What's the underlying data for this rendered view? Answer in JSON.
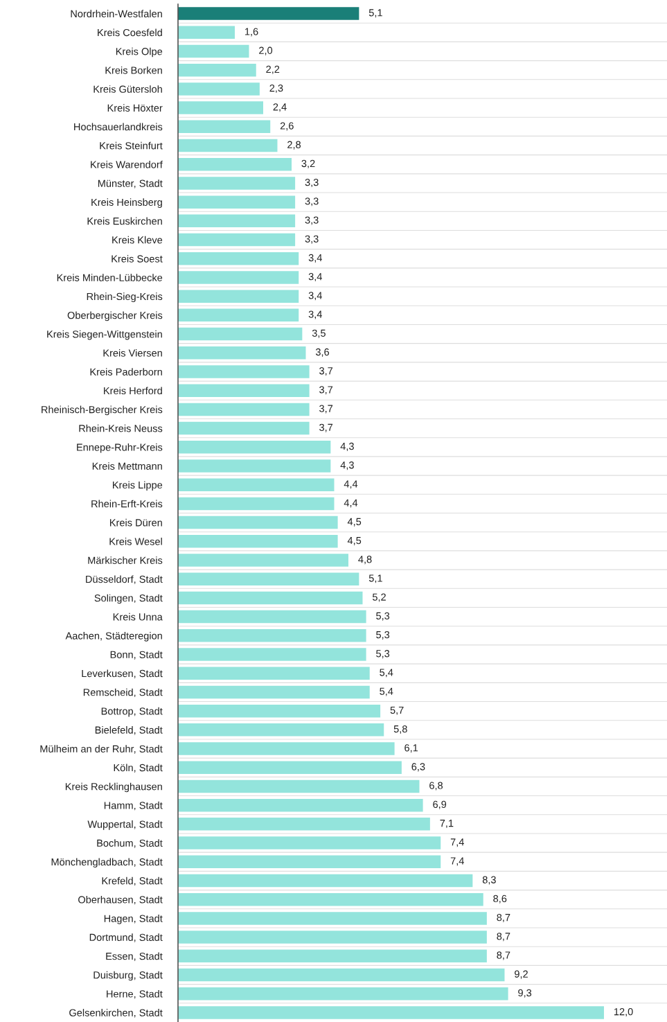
{
  "chart_data": {
    "type": "bar",
    "orientation": "horizontal",
    "grid": "y",
    "categories": [
      "Nordrhein-Westfalen",
      "Kreis Coesfeld",
      "Kreis Olpe",
      "Kreis Borken",
      "Kreis Gütersloh",
      "Kreis Höxter",
      "Hochsauerlandkreis",
      "Kreis Steinfurt",
      "Kreis Warendorf",
      "Münster, Stadt",
      "Kreis Heinsberg",
      "Kreis Euskirchen",
      "Kreis Kleve",
      "Kreis Soest",
      "Kreis Minden-Lübbecke",
      "Rhein-Sieg-Kreis",
      "Oberbergischer Kreis",
      "Kreis Siegen-Wittgenstein",
      "Kreis Viersen",
      "Kreis Paderborn",
      "Kreis Herford",
      "Rheinisch-Bergischer Kreis",
      "Rhein-Kreis Neuss",
      "Ennepe-Ruhr-Kreis",
      "Kreis Mettmann",
      "Kreis Lippe",
      "Rhein-Erft-Kreis",
      "Kreis Düren",
      "Kreis Wesel",
      "Märkischer Kreis",
      "Düsseldorf, Stadt",
      "Solingen, Stadt",
      "Kreis Unna",
      "Aachen, Städteregion",
      "Bonn, Stadt",
      "Leverkusen, Stadt",
      "Remscheid, Stadt",
      "Bottrop, Stadt",
      "Bielefeld, Stadt",
      "Mülheim an der Ruhr, Stadt",
      "Köln, Stadt",
      "Kreis Recklinghausen",
      "Hamm, Stadt",
      "Wuppertal, Stadt",
      "Bochum, Stadt",
      "Mönchengladbach, Stadt",
      "Krefeld, Stadt",
      "Oberhausen, Stadt",
      "Hagen, Stadt",
      "Dortmund, Stadt",
      "Essen, Stadt",
      "Duisburg, Stadt",
      "Herne, Stadt",
      "Gelsenkirchen, Stadt"
    ],
    "values": [
      5.1,
      1.6,
      2.0,
      2.2,
      2.3,
      2.4,
      2.6,
      2.8,
      3.2,
      3.3,
      3.3,
      3.3,
      3.3,
      3.4,
      3.4,
      3.4,
      3.4,
      3.5,
      3.6,
      3.7,
      3.7,
      3.7,
      3.7,
      4.3,
      4.3,
      4.4,
      4.4,
      4.5,
      4.5,
      4.8,
      5.1,
      5.2,
      5.3,
      5.3,
      5.3,
      5.4,
      5.4,
      5.7,
      5.8,
      6.1,
      6.3,
      6.8,
      6.9,
      7.1,
      7.4,
      7.4,
      8.3,
      8.6,
      8.7,
      8.7,
      8.7,
      9.2,
      9.3,
      12.0
    ],
    "colors": [
      "#1a7f78",
      "#93e4dc",
      "#93e4dc",
      "#93e4dc",
      "#93e4dc",
      "#93e4dc",
      "#93e4dc",
      "#93e4dc",
      "#93e4dc",
      "#93e4dc",
      "#93e4dc",
      "#93e4dc",
      "#93e4dc",
      "#93e4dc",
      "#93e4dc",
      "#93e4dc",
      "#93e4dc",
      "#93e4dc",
      "#93e4dc",
      "#93e4dc",
      "#93e4dc",
      "#93e4dc",
      "#93e4dc",
      "#93e4dc",
      "#93e4dc",
      "#93e4dc",
      "#93e4dc",
      "#93e4dc",
      "#93e4dc",
      "#93e4dc",
      "#93e4dc",
      "#93e4dc",
      "#93e4dc",
      "#93e4dc",
      "#93e4dc",
      "#93e4dc",
      "#93e4dc",
      "#93e4dc",
      "#93e4dc",
      "#93e4dc",
      "#93e4dc",
      "#93e4dc",
      "#93e4dc",
      "#93e4dc",
      "#93e4dc",
      "#93e4dc",
      "#93e4dc",
      "#93e4dc",
      "#93e4dc",
      "#93e4dc",
      "#93e4dc",
      "#93e4dc",
      "#93e4dc",
      "#93e4dc"
    ],
    "value_labels": [
      "5,1",
      "1,6",
      "2,0",
      "2,2",
      "2,3",
      "2,4",
      "2,6",
      "2,8",
      "3,2",
      "3,3",
      "3,3",
      "3,3",
      "3,3",
      "3,4",
      "3,4",
      "3,4",
      "3,4",
      "3,5",
      "3,6",
      "3,7",
      "3,7",
      "3,7",
      "3,7",
      "4,3",
      "4,3",
      "4,4",
      "4,4",
      "4,5",
      "4,5",
      "4,8",
      "5,1",
      "5,2",
      "5,3",
      "5,3",
      "5,3",
      "5,4",
      "5,4",
      "5,7",
      "5,8",
      "6,1",
      "6,3",
      "6,8",
      "6,9",
      "7,1",
      "7,4",
      "7,4",
      "8,3",
      "8,6",
      "8,7",
      "8,7",
      "8,7",
      "9,2",
      "9,3",
      "12,0"
    ]
  }
}
